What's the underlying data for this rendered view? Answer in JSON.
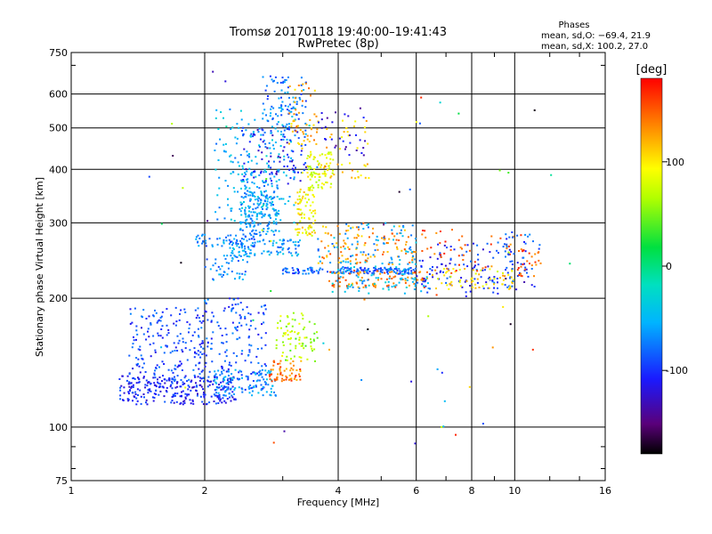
{
  "chart_data": {
    "type": "scatter",
    "title": "Tromsø 20170118 19:40:00–19:41:43",
    "subtitle": "RwPretec (8p)",
    "xlabel": "Frequency [MHz]",
    "ylabel": "Stationary phase Virtual Height [km]",
    "x_scale": "log",
    "y_scale": "log",
    "xlim": [
      1,
      16
    ],
    "ylim": [
      75,
      750
    ],
    "x_ticks": [
      1,
      2,
      4,
      6,
      8,
      10,
      16
    ],
    "y_ticks": [
      75,
      100,
      200,
      300,
      400,
      500,
      600,
      750
    ],
    "grid": true,
    "stats": {
      "title": "Phases",
      "line1": "mean, sd,O: −69.4, 21.9",
      "line2": "mean, sd,X: 100.2, 27.0"
    },
    "colorbar": {
      "label": "[deg]",
      "min": -180,
      "max": 180,
      "ticks": [
        100,
        0,
        -100
      ],
      "palette": "rainbow"
    },
    "clusters": [
      {
        "f": [
          1.28,
          2.35
        ],
        "h": [
          113,
          132
        ],
        "phase": -105,
        "n": 260
      },
      {
        "f": [
          1.35,
          2.0
        ],
        "h": [
          124,
          190
        ],
        "phase": -95,
        "n": 200
      },
      {
        "f": [
          2.0,
          2.75
        ],
        "h": [
          122,
          200
        ],
        "phase": -90,
        "n": 170
      },
      {
        "f": [
          2.1,
          2.9
        ],
        "h": [
          118,
          136
        ],
        "phase": -60,
        "n": 90
      },
      {
        "f": [
          2.8,
          3.3
        ],
        "h": [
          128,
          143
        ],
        "phase": 140,
        "n": 60
      },
      {
        "f": [
          2.9,
          3.4
        ],
        "h": [
          143,
          185
        ],
        "phase": 75,
        "n": 45
      },
      {
        "f": [
          3.0,
          3.6
        ],
        "h": [
          140,
          180
        ],
        "phase": 55,
        "n": 35
      },
      {
        "f": [
          2.2,
          3.3
        ],
        "h": [
          250,
          275
        ],
        "phase": -60,
        "n": 110
      },
      {
        "f": [
          1.9,
          2.6
        ],
        "h": [
          262,
          282
        ],
        "phase": -75,
        "n": 50
      },
      {
        "f": [
          2.0,
          2.5
        ],
        "h": [
          220,
          250
        ],
        "phase": -70,
        "n": 40
      },
      {
        "f": [
          2.4,
          2.95
        ],
        "h": [
          280,
          380
        ],
        "phase": -60,
        "n": 170
      },
      {
        "f": [
          2.1,
          3.2
        ],
        "h": [
          300,
          560
        ],
        "phase": -55,
        "n": 220
      },
      {
        "f": [
          2.4,
          3.4
        ],
        "h": [
          370,
          500
        ],
        "phase": -110,
        "n": 80
      },
      {
        "f": [
          2.7,
          3.4
        ],
        "h": [
          480,
          660
        ],
        "phase": -75,
        "n": 90
      },
      {
        "f": [
          3.2,
          3.55
        ],
        "h": [
          280,
          360
        ],
        "phase": 95,
        "n": 80
      },
      {
        "f": [
          3.4,
          3.9
        ],
        "h": [
          360,
          440
        ],
        "phase": 85,
        "n": 80
      },
      {
        "f": [
          3.1,
          3.6
        ],
        "h": [
          440,
          640
        ],
        "phase": 120,
        "n": 50
      },
      {
        "f": [
          3.6,
          4.7
        ],
        "h": [
          380,
          520
        ],
        "phase": 110,
        "n": 40
      },
      {
        "f": [
          3.6,
          4.6
        ],
        "h": [
          430,
          560
        ],
        "phase": -125,
        "n": 30
      },
      {
        "f": [
          3.0,
          6.0
        ],
        "h": [
          228,
          236
        ],
        "phase": -85,
        "n": 150
      },
      {
        "f": [
          3.8,
          6.4
        ],
        "h": [
          212,
          232
        ],
        "phase": 140,
        "n": 90
      },
      {
        "f": [
          3.8,
          6.4
        ],
        "h": [
          205,
          245
        ],
        "phase": -50,
        "n": 90
      },
      {
        "f": [
          3.6,
          6.0
        ],
        "h": [
          240,
          300
        ],
        "phase": 130,
        "n": 110
      },
      {
        "f": [
          3.6,
          6.0
        ],
        "h": [
          240,
          300
        ],
        "phase": -60,
        "n": 70
      },
      {
        "f": [
          6.0,
          10.0
        ],
        "h": [
          205,
          270
        ],
        "phase": -100,
        "n": 110
      },
      {
        "f": [
          6.5,
          10.0
        ],
        "h": [
          210,
          235
        ],
        "phase": 100,
        "n": 60
      },
      {
        "f": [
          6.0,
          10.5
        ],
        "h": [
          225,
          290
        ],
        "phase": 150,
        "n": 50
      },
      {
        "f": [
          9.5,
          11.5
        ],
        "h": [
          210,
          290
        ],
        "phase": -90,
        "n": 45
      },
      {
        "f": [
          10.2,
          11.5
        ],
        "h": [
          225,
          260
        ],
        "phase": 150,
        "n": 25
      },
      {
        "f": [
          1.5,
          14.0
        ],
        "h": [
          90,
          700
        ],
        "phase": 0,
        "n": 70
      }
    ]
  }
}
